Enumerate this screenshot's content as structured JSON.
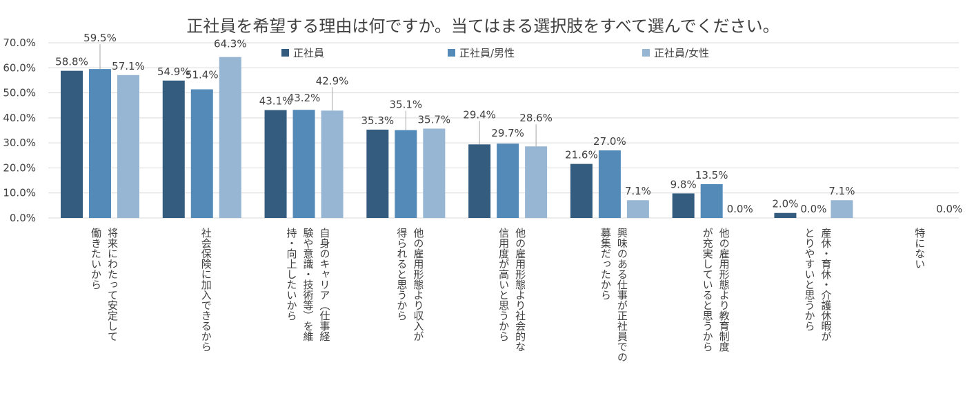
{
  "chart_data": {
    "type": "bar",
    "title": "正社員を希望する理由は何ですか。当てはまる選択肢をすべて選んでください。",
    "xlabel": "",
    "ylabel": "",
    "ylim": [
      0,
      70
    ],
    "y_ticks": [
      "0.0%",
      "10.0%",
      "20.0%",
      "30.0%",
      "40.0%",
      "50.0%",
      "60.0%",
      "70.0%"
    ],
    "grid": true,
    "legend_position": "top",
    "categories": [
      [
        "将来にわたって安定して",
        "働きたいから"
      ],
      [
        "社会保険に加入できるから"
      ],
      [
        "自身のキャリア（仕事経",
        "験や意識・技術等）を維",
        "持・向上したいから"
      ],
      [
        "他の雇用形態より収入が",
        "得られると思うから"
      ],
      [
        "他の雇用形態より社会的な",
        "信用度が高いと思うから"
      ],
      [
        "興味のある仕事が正社員での",
        "募集だったから"
      ],
      [
        "他の雇用形態より教育制度",
        "が充実していると思うから"
      ],
      [
        "産休・育休・介護休暇が",
        "とりやすいと思うから"
      ],
      [
        "特にない"
      ]
    ],
    "series": [
      {
        "name": "正社員",
        "color": "#335c7f",
        "values": [
          58.8,
          54.9,
          43.1,
          35.3,
          29.4,
          21.6,
          9.8,
          2.0,
          0.0
        ],
        "labels": [
          "58.8%",
          "54.9%",
          "43.1%",
          "35.3%",
          "29.4%",
          "21.6%",
          "9.8%",
          "2.0%",
          ""
        ]
      },
      {
        "name": "正社員/男性",
        "color": "#548ab8",
        "values": [
          59.5,
          51.4,
          43.2,
          35.1,
          29.7,
          27.0,
          13.5,
          0.0,
          0.0
        ],
        "labels": [
          "59.5%",
          "51.4%",
          "43.2%",
          "35.1%",
          "29.7%",
          "27.0%",
          "13.5%",
          "0.0%",
          ""
        ]
      },
      {
        "name": "正社員/女性",
        "color": "#97b6d3",
        "values": [
          57.1,
          64.3,
          42.9,
          35.7,
          28.6,
          7.1,
          0.0,
          7.1,
          0.0
        ],
        "labels": [
          "57.1%",
          "64.3%",
          "42.9%",
          "35.7%",
          "28.6%",
          "7.1%",
          "0.0%",
          "7.1%",
          "0.0%"
        ]
      }
    ]
  }
}
